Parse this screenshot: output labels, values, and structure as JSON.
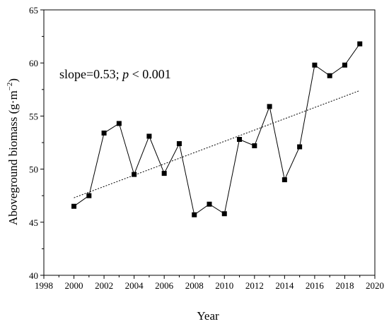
{
  "chart_data": {
    "type": "line",
    "xlabel": "Year",
    "ylabel": {
      "main": "Aboveground biomass (g·m",
      "sup": "−2",
      "close": ")"
    },
    "xlim": [
      1998,
      2020
    ],
    "ylim": [
      40,
      65
    ],
    "x_ticks": [
      1998,
      2000,
      2002,
      2004,
      2006,
      2008,
      2010,
      2012,
      2014,
      2016,
      2018,
      2020
    ],
    "y_ticks": [
      40,
      45,
      50,
      55,
      60,
      65
    ],
    "annotation": {
      "prefix": "slope=0.53; ",
      "p": "p",
      "suffix": " < 0.001"
    },
    "series": [
      {
        "marker": "square",
        "color": "#000000",
        "x": [
          2000,
          2001,
          2002,
          2003,
          2004,
          2005,
          2006,
          2007,
          2008,
          2009,
          2010,
          2011,
          2012,
          2013,
          2014,
          2015,
          2016,
          2017,
          2018,
          2019
        ],
        "y": [
          46.5,
          47.5,
          53.4,
          54.3,
          49.5,
          53.1,
          49.6,
          52.4,
          45.7,
          46.7,
          45.8,
          52.8,
          52.2,
          55.9,
          49.0,
          52.1,
          59.8,
          58.8,
          59.8,
          61.8
        ]
      }
    ],
    "trendline": {
      "style": "dotted",
      "color": "#000000",
      "x": [
        2000,
        2019
      ],
      "y": [
        47.3,
        57.4
      ]
    }
  }
}
